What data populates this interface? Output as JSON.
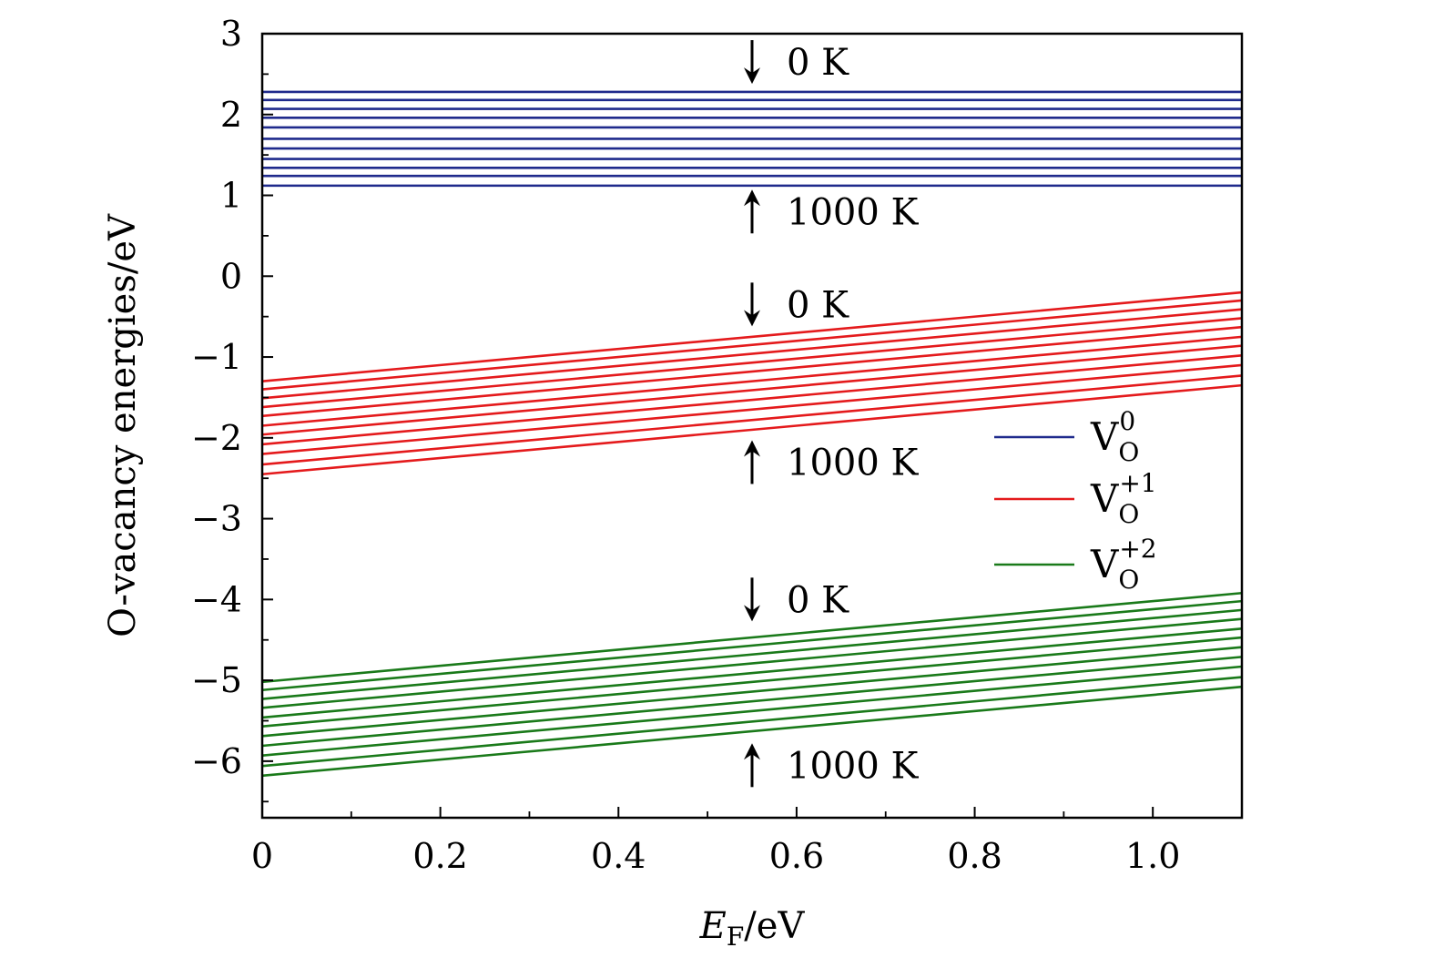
{
  "chart_data": {
    "type": "line",
    "title": "",
    "xlabel": "E_F/eV",
    "xlabel_main": "E",
    "xlabel_sub": "F",
    "xlabel_unit": "/eV",
    "ylabel": "O-vacancy energies/eV",
    "xlim": [
      0,
      1.1
    ],
    "ylim": [
      -6.7,
      3
    ],
    "xticks": [
      0,
      0.2,
      0.4,
      0.6,
      0.8,
      1.0
    ],
    "xtick_labels": [
      "0",
      "0.2",
      "0.4",
      "0.6",
      "0.8",
      "1.0"
    ],
    "yticks": [
      3,
      2,
      1,
      0,
      -1,
      -2,
      -3,
      -4,
      -5,
      -6
    ],
    "ytick_labels": [
      "3",
      "2",
      "1",
      "0",
      "−1",
      "−2",
      "−3",
      "−4",
      "−5",
      "−6"
    ],
    "grid": false,
    "legend_position": "right-middle",
    "legend": [
      {
        "base": "V",
        "sub": "O",
        "sup": "0",
        "color": "#1f2a8c"
      },
      {
        "base": "V",
        "sub": "O",
        "sup": "+1",
        "color": "#e41a1c"
      },
      {
        "base": "V",
        "sub": "O",
        "sup": "+2",
        "color": "#1a7a1a"
      }
    ],
    "series": [
      {
        "name": "V_O^0",
        "color": "#1f2a8c",
        "slope": 0,
        "intercepts_at_EF0": [
          2.28,
          2.18,
          2.07,
          1.96,
          1.84,
          1.7,
          1.58,
          1.45,
          1.34,
          1.24,
          1.12
        ]
      },
      {
        "name": "V_O^+1",
        "color": "#e41a1c",
        "slope": 1,
        "intercepts_at_EF0": [
          -1.3,
          -1.4,
          -1.51,
          -1.62,
          -1.73,
          -1.85,
          -1.96,
          -2.08,
          -2.2,
          -2.33,
          -2.45
        ]
      },
      {
        "name": "V_O^+2",
        "color": "#1a7a1a",
        "slope": 1,
        "intercepts_at_EF0": [
          -5.02,
          -5.12,
          -5.23,
          -5.34,
          -5.46,
          -5.57,
          -5.69,
          -5.81,
          -5.93,
          -6.06,
          -6.18
        ]
      }
    ],
    "annotations": [
      {
        "text": "0 K",
        "arrow": "down",
        "x": 0.55,
        "y": 2.65
      },
      {
        "text": "1000 K",
        "arrow": "up",
        "x": 0.55,
        "y": 0.8
      },
      {
        "text": "0 K",
        "arrow": "down",
        "x": 0.55,
        "y": -0.35
      },
      {
        "text": "1000 K",
        "arrow": "up",
        "x": 0.55,
        "y": -2.3
      },
      {
        "text": "0 K",
        "arrow": "down",
        "x": 0.55,
        "y": -4.0
      },
      {
        "text": "1000 K",
        "arrow": "up",
        "x": 0.55,
        "y": -6.05
      }
    ]
  }
}
